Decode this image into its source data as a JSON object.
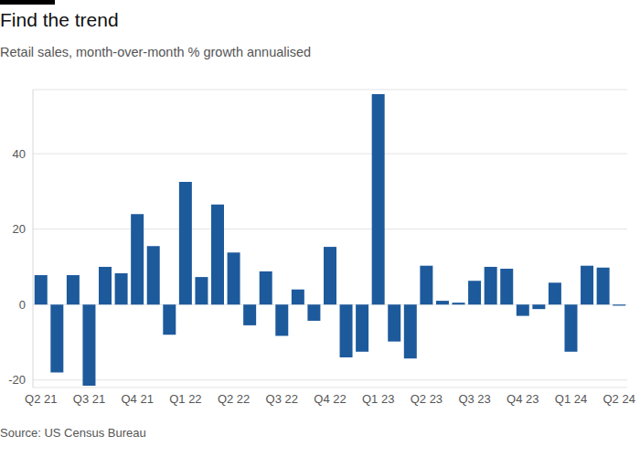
{
  "chart_data": {
    "type": "bar",
    "title": "Find the trend",
    "subtitle": "Retail sales, month-over-month % growth annualised",
    "source": "Source: US Census Bureau",
    "categories": [
      "Q2 21",
      null,
      null,
      "Q3 21",
      null,
      null,
      "Q4 21",
      null,
      null,
      "Q1 22",
      null,
      null,
      "Q2 22",
      null,
      null,
      "Q3 22",
      null,
      null,
      "Q4 22",
      null,
      null,
      "Q1 23",
      null,
      null,
      "Q2 23",
      null,
      null,
      "Q3 23",
      null,
      null,
      "Q4 23",
      null,
      null,
      "Q1 24",
      null,
      null,
      "Q2 24"
    ],
    "values": [
      7.8,
      -18,
      7.8,
      -21.5,
      10,
      8.3,
      24,
      15.5,
      -8,
      32.5,
      7.3,
      26.5,
      13.8,
      -5.5,
      8.8,
      -8.3,
      4,
      -4.3,
      15.3,
      -14,
      -12.5,
      55.8,
      -9.8,
      -14.3,
      10.3,
      1,
      0.5,
      6.3,
      10,
      9.5,
      -3,
      -1.2,
      5.8,
      -12.5,
      10.3,
      9.8,
      -0.3
    ],
    "color": "#1d5a9c",
    "ylim": [
      -22,
      57
    ],
    "yticks": [
      -20,
      0,
      20,
      40
    ],
    "grid": true
  }
}
